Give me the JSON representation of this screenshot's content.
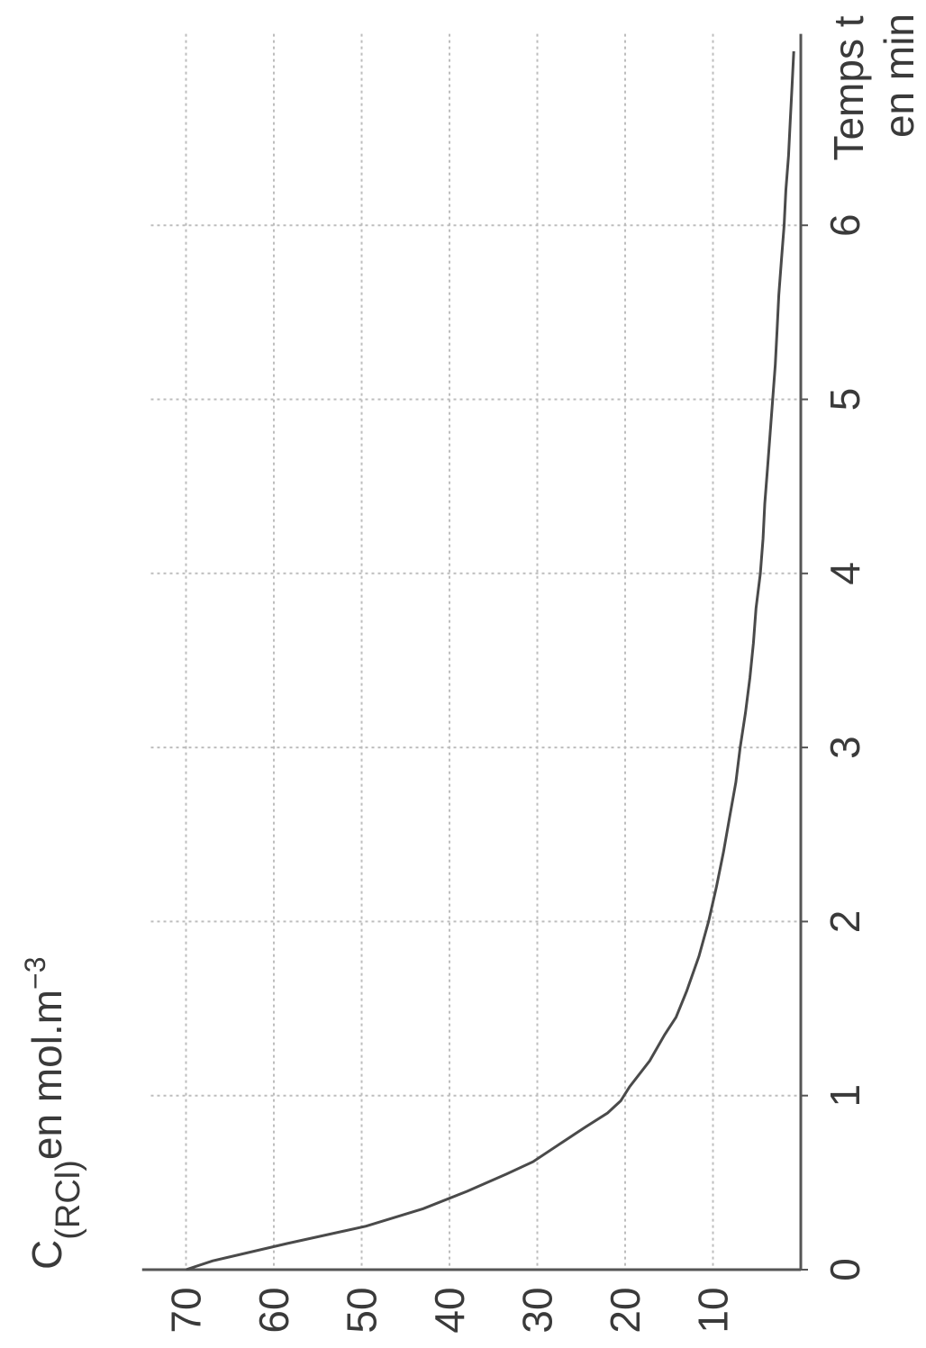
{
  "chart_data": {
    "type": "line",
    "orientation": "rotated-90-clockwise",
    "xlabel": "Temps t en min",
    "xlabel_lines": [
      "Temps t",
      "en min"
    ],
    "ylabel": "C(RCl) en mol.m−3",
    "ylabel_parts": {
      "main": "C",
      "subscript": "(RCl)",
      "text": "en mol.m",
      "superscript": "−3"
    },
    "x_ticks": [
      "0",
      "1",
      "2",
      "3",
      "4",
      "5",
      "6"
    ],
    "y_ticks": [
      "10",
      "20",
      "30",
      "40",
      "50",
      "60",
      "70"
    ],
    "xlim": [
      0,
      7.1
    ],
    "ylim": [
      0,
      75
    ],
    "grid": true,
    "series": [
      {
        "x": [
          0,
          0.05,
          0.15,
          0.25,
          0.35,
          0.45,
          0.55,
          0.62,
          0.72,
          0.82,
          0.9,
          0.97,
          1.05,
          1.2,
          1.35,
          1.45,
          1.6,
          1.8,
          2.0,
          2.2,
          2.4,
          2.6,
          2.8,
          3.0,
          3.2,
          3.4,
          3.6,
          3.8,
          4.0,
          4.2,
          4.4,
          4.6,
          4.8,
          5.0,
          5.2,
          5.4,
          5.6,
          5.8,
          6.0,
          6.2,
          6.4,
          6.6,
          6.8,
          7.0
        ],
        "y": [
          70,
          67,
          58.5,
          49.5,
          43,
          38,
          33.5,
          30.5,
          27.5,
          24.5,
          22,
          20.5,
          19.5,
          17.2,
          15.5,
          14.2,
          13,
          11.6,
          10.5,
          9.6,
          8.8,
          8.1,
          7.4,
          6.9,
          6.3,
          5.8,
          5.4,
          5.1,
          4.6,
          4.3,
          4.1,
          3.8,
          3.5,
          3.2,
          2.9,
          2.7,
          2.5,
          2.2,
          1.9,
          1.7,
          1.4,
          1.2,
          1.0,
          0.8
        ]
      }
    ]
  }
}
